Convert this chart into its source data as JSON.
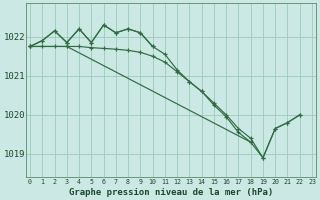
{
  "title": "Graphe pression niveau de la mer (hPa)",
  "bg_color": "#cce8e4",
  "grid_color": "#99ccbb",
  "line_color": "#2d6e3e",
  "ylim": [
    1018.4,
    1022.85
  ],
  "xlim": [
    -0.3,
    23.3
  ],
  "yticks": [
    1019,
    1020,
    1021,
    1022
  ],
  "xticks": [
    0,
    1,
    2,
    3,
    4,
    5,
    6,
    7,
    8,
    9,
    10,
    11,
    12,
    13,
    14,
    15,
    16,
    17,
    18,
    19,
    20,
    21,
    22,
    23
  ],
  "series": [
    {
      "x": [
        0,
        1,
        2,
        3,
        4,
        5,
        6,
        7,
        8,
        9,
        10
      ],
      "y": [
        1021.75,
        1021.9,
        1022.15,
        1021.85,
        1022.2,
        1021.85,
        1022.3,
        1022.1,
        1022.2,
        1022.1,
        1021.75
      ]
    },
    {
      "x": [
        0,
        1,
        2,
        3,
        4,
        5,
        6,
        7,
        8,
        9,
        10,
        11,
        12,
        13,
        14,
        15,
        16,
        17,
        18
      ],
      "y": [
        1021.75,
        1021.9,
        1022.15,
        1021.85,
        1022.2,
        1021.85,
        1022.3,
        1022.1,
        1022.2,
        1022.1,
        1021.75,
        1021.55,
        1021.15,
        1020.85,
        1020.6,
        1020.25,
        1019.95,
        1019.55,
        1019.3
      ]
    },
    {
      "x": [
        0,
        1,
        2,
        3,
        4,
        5,
        6,
        7,
        8,
        9,
        10,
        11,
        12,
        13,
        14,
        15,
        16,
        17,
        18,
        19,
        20,
        21,
        22
      ],
      "y": [
        1021.75,
        1021.75,
        1021.75,
        1021.75,
        1021.75,
        1021.72,
        1021.7,
        1021.68,
        1021.65,
        1021.6,
        1021.5,
        1021.35,
        1021.1,
        1020.85,
        1020.6,
        1020.3,
        1020.0,
        1019.65,
        1019.4,
        1018.9,
        1019.65,
        1019.8,
        1020.0
      ]
    },
    {
      "x": [
        0,
        3,
        18,
        19,
        20,
        21,
        22
      ],
      "y": [
        1021.75,
        1021.75,
        1019.3,
        1018.9,
        1019.65,
        1019.8,
        1020.0
      ]
    }
  ]
}
